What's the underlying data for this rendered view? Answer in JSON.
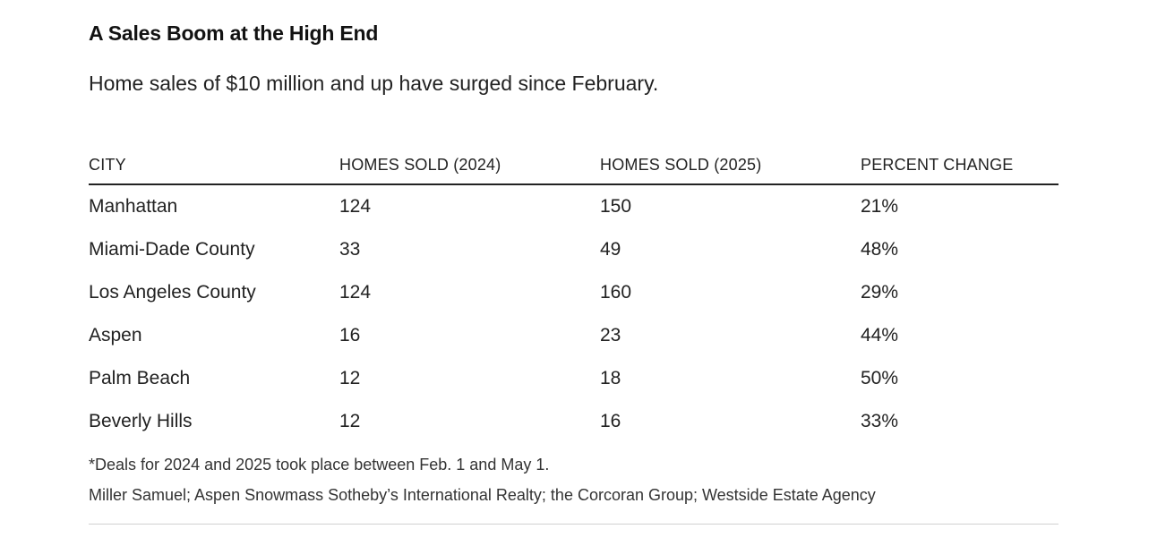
{
  "chart_data": {
    "type": "table",
    "title": "A Sales Boom at the High End",
    "subtitle": "Home sales of $10 million and up have surged since February.",
    "columns": [
      "CITY",
      "HOMES SOLD (2024)",
      "HOMES SOLD (2025)",
      "PERCENT CHANGE"
    ],
    "rows": [
      [
        "Manhattan",
        "124",
        "150",
        "21%"
      ],
      [
        "Miami-Dade County",
        "33",
        "49",
        "48%"
      ],
      [
        "Los Angeles County",
        "124",
        "160",
        "29%"
      ],
      [
        "Aspen",
        "16",
        "23",
        "44%"
      ],
      [
        "Palm Beach",
        "12",
        "18",
        "50%"
      ],
      [
        "Beverly Hills",
        "12",
        "16",
        "33%"
      ]
    ],
    "note": "*Deals for 2024 and 2025 took place between Feb. 1 and May 1.",
    "source": "Miller Samuel; Aspen Snowmass Sotheby’s International Realty; the Corcoran Group; Westside Estate Agency"
  }
}
